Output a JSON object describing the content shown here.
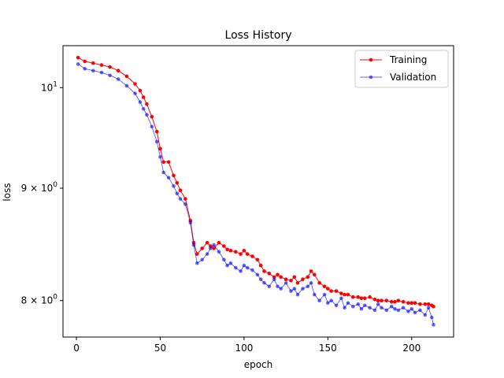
{
  "chart_data": {
    "type": "line",
    "title": "Loss History",
    "xlabel": "epoch",
    "ylabel": "loss",
    "yscale": "log",
    "xlim": [
      -8,
      225
    ],
    "ylim": [
      7.7,
      10.45
    ],
    "x_ticks": [
      {
        "value": 0,
        "label": "0"
      },
      {
        "value": 50,
        "label": "50"
      },
      {
        "value": 100,
        "label": "100"
      },
      {
        "value": 150,
        "label": "150"
      },
      {
        "value": 200,
        "label": "200"
      }
    ],
    "y_ticks": [
      {
        "value": 8,
        "label": "8 × 10⁰",
        "mant": "8",
        "base": "10",
        "exp": "0"
      },
      {
        "value": 9,
        "label": "9 × 10⁰",
        "mant": "9",
        "base": "10",
        "exp": "0"
      },
      {
        "value": 10,
        "label": "10¹",
        "mant": "",
        "base": "10",
        "exp": "1"
      }
    ],
    "grid": false,
    "legend_position": "top-right",
    "series": [
      {
        "name": "Training",
        "color": "#ff0000",
        "marker": "circle",
        "x": [
          1,
          5,
          10,
          15,
          20,
          25,
          30,
          35,
          38,
          40,
          42,
          45,
          48,
          50,
          52,
          55,
          58,
          60,
          62,
          65,
          68,
          70,
          72,
          75,
          78,
          80,
          82,
          85,
          88,
          90,
          92,
          95,
          98,
          100,
          102,
          105,
          108,
          110,
          112,
          115,
          118,
          120,
          122,
          125,
          128,
          130,
          132,
          135,
          138,
          140,
          142,
          145,
          148,
          150,
          152,
          155,
          158,
          160,
          162,
          165,
          168,
          170,
          172,
          175,
          178,
          180,
          182,
          185,
          188,
          190,
          192,
          195,
          198,
          200,
          202,
          205,
          208,
          210,
          212,
          213
        ],
        "y": [
          10.32,
          10.28,
          10.26,
          10.24,
          10.22,
          10.18,
          10.12,
          10.04,
          9.97,
          9.9,
          9.83,
          9.7,
          9.55,
          9.38,
          9.25,
          9.25,
          9.12,
          9.05,
          8.98,
          8.9,
          8.7,
          8.5,
          8.4,
          8.45,
          8.5,
          8.47,
          8.45,
          8.5,
          8.47,
          8.44,
          8.43,
          8.42,
          8.4,
          8.43,
          8.4,
          8.38,
          8.35,
          8.3,
          8.25,
          8.23,
          8.2,
          8.22,
          8.2,
          8.18,
          8.17,
          8.2,
          8.15,
          8.18,
          8.2,
          8.25,
          8.22,
          8.15,
          8.12,
          8.1,
          8.08,
          8.08,
          8.06,
          8.05,
          8.05,
          8.03,
          8.03,
          8.02,
          8.02,
          8.03,
          8.01,
          8.0,
          8.0,
          8.0,
          7.99,
          7.99,
          8.0,
          7.99,
          7.98,
          7.98,
          7.98,
          7.97,
          7.97,
          7.97,
          7.96,
          7.95
        ]
      },
      {
        "name": "Validation",
        "color": "#0000ff",
        "marker": "circle",
        "x": [
          1,
          5,
          10,
          15,
          20,
          25,
          30,
          35,
          38,
          40,
          42,
          45,
          48,
          50,
          52,
          55,
          58,
          60,
          62,
          65,
          68,
          70,
          72,
          75,
          78,
          80,
          82,
          85,
          88,
          90,
          92,
          95,
          98,
          100,
          102,
          105,
          108,
          110,
          112,
          115,
          118,
          120,
          122,
          125,
          128,
          130,
          132,
          135,
          138,
          140,
          142,
          145,
          148,
          150,
          152,
          155,
          158,
          160,
          162,
          165,
          168,
          170,
          172,
          175,
          178,
          180,
          182,
          185,
          188,
          190,
          192,
          195,
          198,
          200,
          202,
          205,
          208,
          210,
          212,
          213
        ],
        "y": [
          10.25,
          10.2,
          10.18,
          10.16,
          10.13,
          10.09,
          10.02,
          9.94,
          9.85,
          9.78,
          9.72,
          9.6,
          9.45,
          9.3,
          9.15,
          9.1,
          9.02,
          8.95,
          8.9,
          8.85,
          8.68,
          8.48,
          8.32,
          8.35,
          8.4,
          8.45,
          8.48,
          8.42,
          8.35,
          8.3,
          8.32,
          8.28,
          8.25,
          8.3,
          8.28,
          8.26,
          8.22,
          8.18,
          8.15,
          8.12,
          8.18,
          8.12,
          8.1,
          8.15,
          8.08,
          8.1,
          8.05,
          8.1,
          8.12,
          8.15,
          8.05,
          8.0,
          8.05,
          7.98,
          8.0,
          7.96,
          8.02,
          7.94,
          7.98,
          7.95,
          7.97,
          7.93,
          7.96,
          7.94,
          7.92,
          7.97,
          7.94,
          7.92,
          7.95,
          7.93,
          7.92,
          7.94,
          7.91,
          7.93,
          7.9,
          7.92,
          7.88,
          7.94,
          7.86,
          7.8
        ]
      }
    ]
  }
}
